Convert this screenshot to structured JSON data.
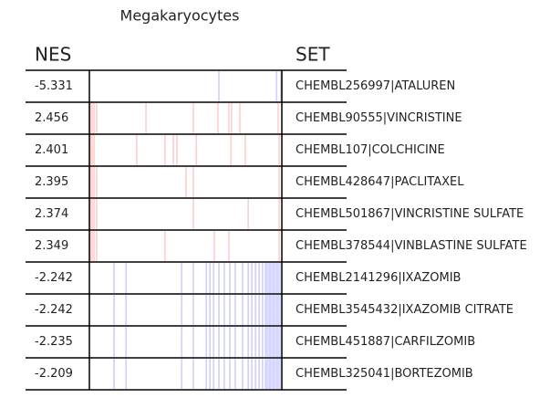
{
  "chart_data": {
    "type": "barcode",
    "title": "Megakaryocytes",
    "columns": [
      "NES",
      "SET"
    ],
    "xlim": [
      0,
      1
    ],
    "rows": [
      {
        "nes": -5.331,
        "set": "CHEMBL256997|ATALUREN",
        "color": "#0000ff",
        "hits": [
          0.673,
          0.972,
          0.995
        ]
      },
      {
        "nes": 2.456,
        "set": "CHEMBL90555|VINCRISTINE",
        "color": "#ff0000",
        "hits": [
          0.005,
          0.014,
          0.024,
          0.038,
          0.294,
          0.54,
          0.668,
          0.725,
          0.739,
          0.782,
          0.981
        ]
      },
      {
        "nes": 2.401,
        "set": "CHEMBL107|COLCHICINE",
        "color": "#ff0000",
        "hits": [
          0.005,
          0.014,
          0.024,
          0.246,
          0.393,
          0.436,
          0.455,
          0.555,
          0.735,
          0.81,
          0.986
        ]
      },
      {
        "nes": 2.395,
        "set": "CHEMBL428647|PACLITAXEL",
        "color": "#ff0000",
        "hits": [
          0.005,
          0.014,
          0.024,
          0.038,
          0.502,
          0.54,
          0.986
        ]
      },
      {
        "nes": 2.374,
        "set": "CHEMBL501867|VINCRISTINE SULFATE",
        "color": "#ff0000",
        "hits": [
          0.005,
          0.014,
          0.024,
          0.038,
          0.54,
          0.825,
          0.986
        ]
      },
      {
        "nes": 2.349,
        "set": "CHEMBL378544|VINBLASTINE SULFATE",
        "color": "#ff0000",
        "hits": [
          0.005,
          0.014,
          0.024,
          0.038,
          0.393,
          0.649,
          0.725,
          0.986
        ]
      },
      {
        "nes": -2.242,
        "set": "CHEMBL2141296|IXAZOMIB",
        "color": "#0000ff",
        "hits": [
          0.128,
          0.19,
          0.479,
          0.54,
          0.607,
          0.626,
          0.645,
          0.673,
          0.701,
          0.73,
          0.758,
          0.796,
          0.825,
          0.844,
          0.863,
          0.882,
          0.9,
          0.915,
          0.924,
          0.934,
          0.943,
          0.953,
          0.962,
          0.972,
          0.981,
          0.991
        ]
      },
      {
        "nes": -2.242,
        "set": "CHEMBL3545432|IXAZOMIB CITRATE",
        "color": "#0000ff",
        "hits": [
          0.128,
          0.19,
          0.479,
          0.54,
          0.607,
          0.626,
          0.645,
          0.673,
          0.701,
          0.73,
          0.758,
          0.796,
          0.825,
          0.844,
          0.863,
          0.882,
          0.9,
          0.915,
          0.924,
          0.934,
          0.943,
          0.953,
          0.962,
          0.972,
          0.981,
          0.991
        ]
      },
      {
        "nes": -2.235,
        "set": "CHEMBL451887|CARFILZOMIB",
        "color": "#0000ff",
        "hits": [
          0.128,
          0.19,
          0.479,
          0.54,
          0.607,
          0.626,
          0.645,
          0.673,
          0.701,
          0.73,
          0.758,
          0.796,
          0.825,
          0.844,
          0.863,
          0.882,
          0.9,
          0.915,
          0.924,
          0.934,
          0.943,
          0.953,
          0.962,
          0.972,
          0.981,
          0.991
        ]
      },
      {
        "nes": -2.209,
        "set": "CHEMBL325041|BORTEZOMIB",
        "color": "#0000ff",
        "hits": [
          0.128,
          0.19,
          0.479,
          0.54,
          0.607,
          0.626,
          0.645,
          0.673,
          0.701,
          0.73,
          0.758,
          0.796,
          0.825,
          0.844,
          0.863,
          0.882,
          0.9,
          0.915,
          0.924,
          0.934,
          0.943,
          0.953,
          0.962,
          0.972,
          0.981,
          0.991
        ]
      }
    ]
  }
}
